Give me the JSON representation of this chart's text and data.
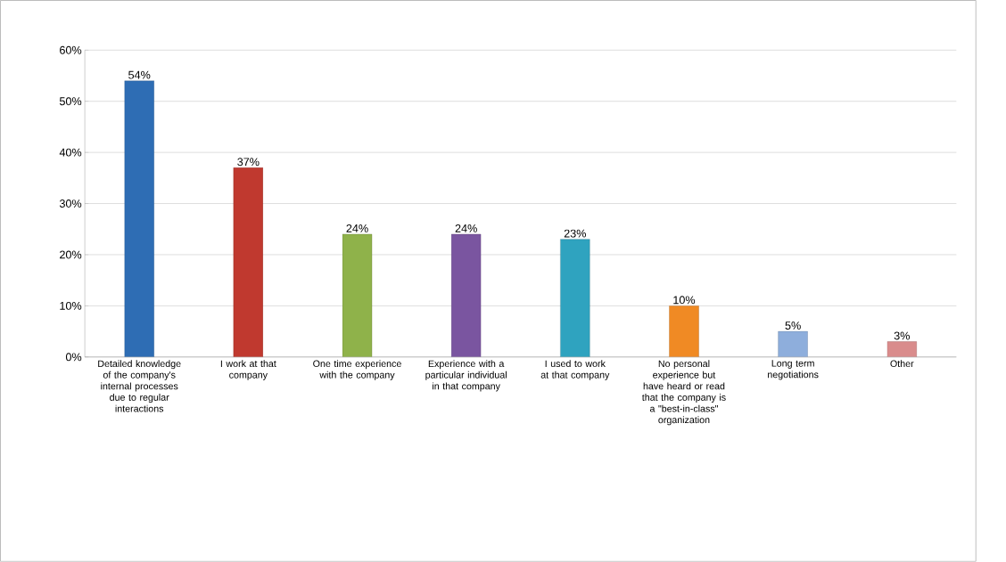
{
  "chart_data": {
    "type": "bar",
    "categories": [
      "Detailed knowledge of the company's internal processes due to regular interactions",
      "I work at that company",
      "One time experience with the company",
      "Experience with a particular individual in that company",
      "I used to work at that company",
      "No personal experience but have heard or read that the company is a \"best-in-class\" organization",
      "Long term negotiations",
      "Other"
    ],
    "values": [
      54,
      37,
      24,
      24,
      23,
      10,
      5,
      3
    ],
    "value_labels": [
      "54%",
      "37%",
      "24%",
      "24%",
      "23%",
      "10%",
      "5%",
      "3%"
    ],
    "colors": [
      "#2e6db4",
      "#c0392f",
      "#8fb24a",
      "#7a55a0",
      "#2fa3bf",
      "#f08a24",
      "#8eaedc",
      "#d98c8c"
    ],
    "ylim": [
      0,
      60
    ],
    "yticks": [
      {
        "value": 0,
        "label": "0%"
      },
      {
        "value": 10,
        "label": "10%"
      },
      {
        "value": 20,
        "label": "20%"
      },
      {
        "value": 30,
        "label": "30%"
      },
      {
        "value": 40,
        "label": "40%"
      },
      {
        "value": 50,
        "label": "50%"
      },
      {
        "value": 60,
        "label": "60%"
      }
    ],
    "grid": "y"
  }
}
